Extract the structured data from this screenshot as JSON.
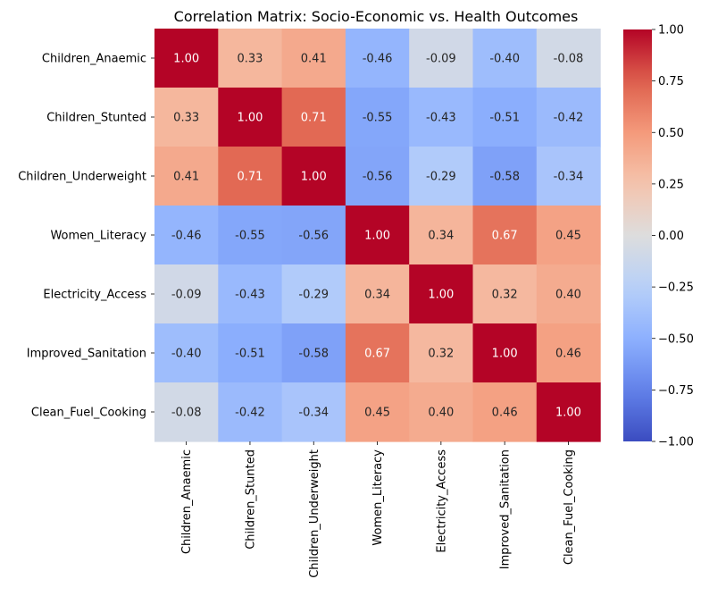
{
  "chart_data": {
    "type": "heatmap",
    "title": "Correlation Matrix: Socio-Economic vs. Health Outcomes",
    "colormap": "coolwarm",
    "vmin": -1.0,
    "vmax": 1.0,
    "colorbar_ticks": [
      "1.00",
      "0.75",
      "0.50",
      "0.25",
      "0.00",
      "−0.25",
      "−0.50",
      "−0.75",
      "−1.00"
    ],
    "colorbar_tick_values": [
      1.0,
      0.75,
      0.5,
      0.25,
      0.0,
      -0.25,
      -0.5,
      -0.75,
      -1.0
    ],
    "row_labels": [
      "Children_Anaemic",
      "Children_Stunted",
      "Children_Underweight",
      "Women_Literacy",
      "Electricity_Access",
      "Improved_Sanitation",
      "Clean_Fuel_Cooking"
    ],
    "col_labels": [
      "Children_Anaemic",
      "Children_Stunted",
      "Children_Underweight",
      "Women_Literacy",
      "Electricity_Access",
      "Improved_Sanitation",
      "Clean_Fuel_Cooking"
    ],
    "values": [
      [
        1.0,
        0.33,
        0.41,
        -0.46,
        -0.09,
        -0.4,
        -0.08
      ],
      [
        0.33,
        1.0,
        0.71,
        -0.55,
        -0.43,
        -0.51,
        -0.42
      ],
      [
        0.41,
        0.71,
        1.0,
        -0.56,
        -0.29,
        -0.58,
        -0.34
      ],
      [
        -0.46,
        -0.55,
        -0.56,
        1.0,
        0.34,
        0.67,
        0.45
      ],
      [
        -0.09,
        -0.43,
        -0.29,
        0.34,
        1.0,
        0.32,
        0.4
      ],
      [
        -0.4,
        -0.51,
        -0.58,
        0.67,
        0.32,
        1.0,
        0.46
      ],
      [
        -0.08,
        -0.42,
        -0.34,
        0.45,
        0.4,
        0.46,
        1.0
      ]
    ],
    "cell_labels": [
      [
        "1.00",
        "0.33",
        "0.41",
        "-0.46",
        "-0.09",
        "-0.40",
        "-0.08"
      ],
      [
        "0.33",
        "1.00",
        "0.71",
        "-0.55",
        "-0.43",
        "-0.51",
        "-0.42"
      ],
      [
        "0.41",
        "0.71",
        "1.00",
        "-0.56",
        "-0.29",
        "-0.58",
        "-0.34"
      ],
      [
        "-0.46",
        "-0.55",
        "-0.56",
        "1.00",
        "0.34",
        "0.67",
        "0.45"
      ],
      [
        "-0.09",
        "-0.43",
        "-0.29",
        "0.34",
        "1.00",
        "0.32",
        "0.40"
      ],
      [
        "-0.40",
        "-0.51",
        "-0.58",
        "0.67",
        "0.32",
        "1.00",
        "0.46"
      ],
      [
        "-0.08",
        "-0.42",
        "-0.34",
        "0.45",
        "0.40",
        "0.46",
        "1.00"
      ]
    ]
  }
}
